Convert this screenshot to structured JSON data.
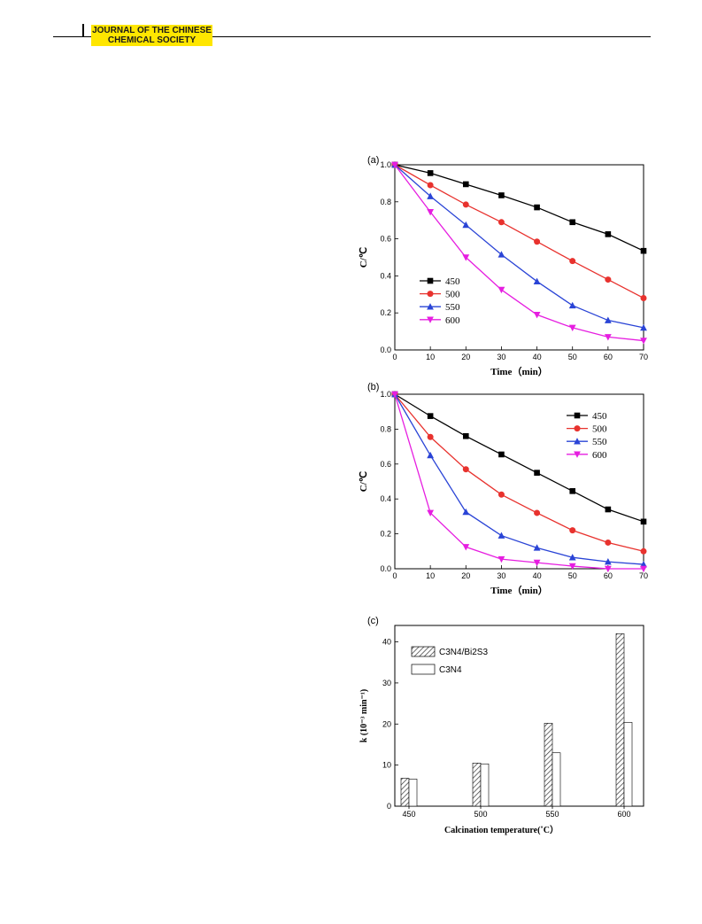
{
  "header": {
    "journal_line1": "JOURNAL OF THE CHINESE",
    "journal_line2": "CHEMICAL SOCIETY"
  },
  "colors": {
    "badge": "#ffe600",
    "s450": "#000000",
    "s500": "#e8322e",
    "s550": "#2a44d6",
    "s600": "#e61ee0"
  },
  "chart_data": [
    {
      "type": "line",
      "panel_label": "(a)",
      "xlabel": "Time（min）",
      "ylabel": "C/℃",
      "x": [
        0,
        10,
        20,
        30,
        40,
        50,
        60,
        70
      ],
      "xlim": [
        0,
        70
      ],
      "ylim": [
        0.0,
        1.0
      ],
      "xticks": [
        "0",
        "10",
        "20",
        "30",
        "40",
        "50",
        "60",
        "70"
      ],
      "yticks": [
        "0.0",
        "0.2",
        "0.4",
        "0.6",
        "0.8",
        "1.0"
      ],
      "legend_position": "left-bottom",
      "series": [
        {
          "name": "450",
          "marker": "square",
          "values": [
            1.0,
            0.955,
            0.895,
            0.835,
            0.77,
            0.69,
            0.625,
            0.535
          ]
        },
        {
          "name": "500",
          "marker": "circle",
          "values": [
            1.0,
            0.89,
            0.785,
            0.69,
            0.585,
            0.48,
            0.38,
            0.28
          ]
        },
        {
          "name": "550",
          "marker": "triangle-up",
          "values": [
            1.0,
            0.83,
            0.675,
            0.515,
            0.37,
            0.24,
            0.16,
            0.12
          ]
        },
        {
          "name": "600",
          "marker": "triangle-down",
          "values": [
            1.0,
            0.745,
            0.5,
            0.325,
            0.19,
            0.12,
            0.07,
            0.05
          ]
        }
      ]
    },
    {
      "type": "line",
      "panel_label": "(b)",
      "xlabel": "Time（min）",
      "ylabel": "C/℃",
      "x": [
        0,
        10,
        20,
        30,
        40,
        50,
        60,
        70
      ],
      "xlim": [
        0,
        70
      ],
      "ylim": [
        0.0,
        1.0
      ],
      "xticks": [
        "0",
        "10",
        "20",
        "30",
        "40",
        "50",
        "60",
        "70"
      ],
      "yticks": [
        "0.0",
        "0.2",
        "0.4",
        "0.6",
        "0.8",
        "1.0"
      ],
      "legend_position": "top-right",
      "series": [
        {
          "name": "450",
          "marker": "square",
          "values": [
            1.0,
            0.875,
            0.76,
            0.655,
            0.55,
            0.445,
            0.34,
            0.27
          ]
        },
        {
          "name": "500",
          "marker": "circle",
          "values": [
            1.0,
            0.755,
            0.57,
            0.425,
            0.32,
            0.22,
            0.15,
            0.1
          ]
        },
        {
          "name": "550",
          "marker": "triangle-up",
          "values": [
            1.0,
            0.65,
            0.325,
            0.19,
            0.12,
            0.065,
            0.04,
            0.025
          ]
        },
        {
          "name": "600",
          "marker": "triangle-down",
          "values": [
            1.0,
            0.32,
            0.125,
            0.055,
            0.035,
            0.015,
            0.0,
            0.0
          ]
        }
      ]
    },
    {
      "type": "bar",
      "panel_label": "(c)",
      "xlabel": "Calcination temperature(˚C）",
      "ylabel": "k (10⁻³ min⁻¹)",
      "categories": [
        "450",
        "500",
        "550",
        "600"
      ],
      "ylim": [
        0,
        44
      ],
      "yticks": [
        "0",
        "10",
        "20",
        "30",
        "40"
      ],
      "legend_position": "top-left",
      "series": [
        {
          "name": "C3N4/Bi2S3",
          "pattern": "hatched",
          "values": [
            6.8,
            10.5,
            20.2,
            42.0
          ]
        },
        {
          "name": "C3N4",
          "pattern": "open",
          "values": [
            6.6,
            10.3,
            13.0,
            20.4
          ]
        }
      ]
    }
  ]
}
